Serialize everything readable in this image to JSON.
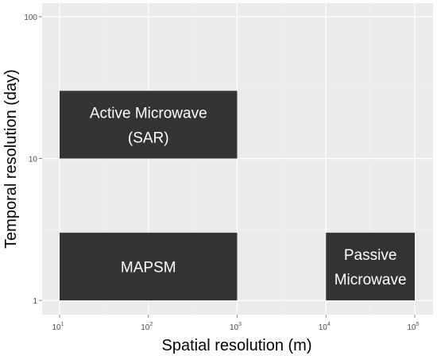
{
  "chart_data": {
    "type": "area",
    "title": "",
    "xlabel": "Spatial resolution (m)",
    "ylabel": "Temporal resolution (day)",
    "x_scale": "log10",
    "y_scale": "log10",
    "xlim": [
      10,
      100000
    ],
    "ylim": [
      1,
      100
    ],
    "x_ticks": [
      {
        "value": 10,
        "base": "10",
        "exp": "1"
      },
      {
        "value": 100,
        "base": "10",
        "exp": "2"
      },
      {
        "value": 1000,
        "base": "10",
        "exp": "3"
      },
      {
        "value": 10000,
        "base": "10",
        "exp": "4"
      },
      {
        "value": 100000,
        "base": "10",
        "exp": "5"
      }
    ],
    "y_ticks": [
      {
        "value": 1,
        "label": "1"
      },
      {
        "value": 10,
        "label": "10"
      },
      {
        "value": 100,
        "label": "100"
      }
    ],
    "grid": true,
    "legend": "none",
    "rect_color": "#333333",
    "panel_color": "#ebebeb",
    "rectangles": [
      {
        "label_lines": [
          "Active Microwave",
          "(SAR)"
        ],
        "x_min": 10,
        "x_max": 1000,
        "y_min": 10,
        "y_max": 30
      },
      {
        "label_lines": [
          "MAPSM"
        ],
        "x_min": 10,
        "x_max": 1000,
        "y_min": 1,
        "y_max": 3
      },
      {
        "label_lines": [
          "Passive",
          "Microwave"
        ],
        "x_min": 10000,
        "x_max": 100000,
        "y_min": 1,
        "y_max": 3
      }
    ]
  }
}
